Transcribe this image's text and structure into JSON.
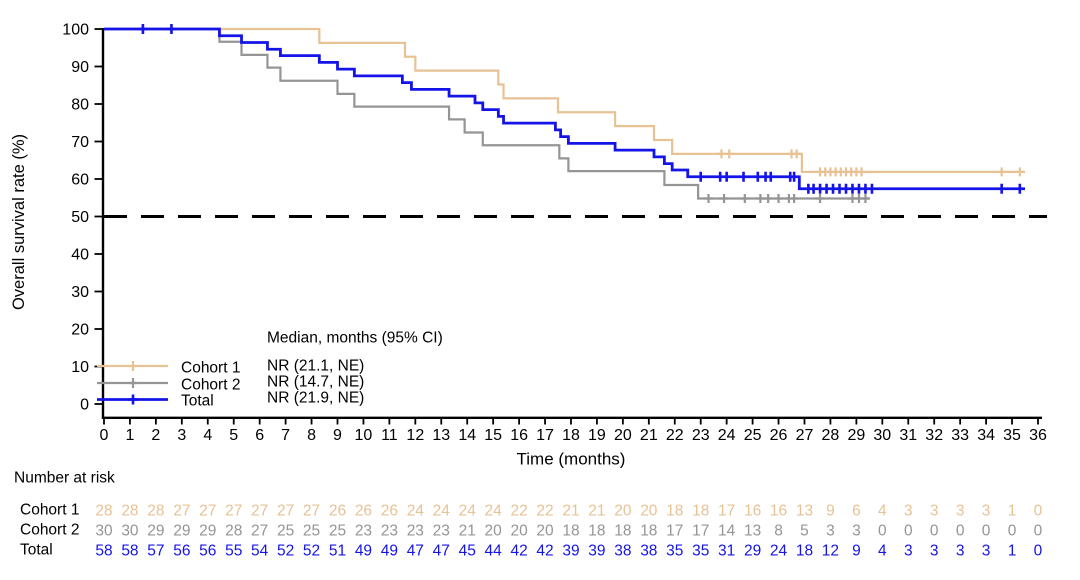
{
  "labels": {
    "y_title": "Overall survival rate (%)",
    "x_title": "Time (months)",
    "number_at_risk": "Number at risk",
    "median_header": "Median, months (95% CI)"
  },
  "chart_data": {
    "type": "line",
    "subtype": "kaplan-meier-step",
    "title": "",
    "xlabel": "Time (months)",
    "ylabel": "Overall survival rate (%)",
    "xlim": [
      0,
      36
    ],
    "ylim": [
      0,
      100
    ],
    "grid": false,
    "legend_position": "lower-left-inside",
    "x_axis": {
      "ticks": [
        0,
        1,
        2,
        3,
        4,
        5,
        6,
        7,
        8,
        9,
        10,
        11,
        12,
        13,
        14,
        15,
        16,
        17,
        18,
        19,
        20,
        21,
        22,
        23,
        24,
        25,
        26,
        27,
        28,
        29,
        30,
        31,
        32,
        33,
        34,
        35,
        36
      ]
    },
    "y_axis": {
      "ticks": [
        100,
        90,
        80,
        70,
        60,
        50,
        40,
        30,
        20,
        10,
        0
      ]
    },
    "reference_line": {
      "y": 50,
      "style": "dashed",
      "color": "#000000"
    },
    "axis_color": "#000000",
    "series": [
      {
        "name": "Cohort 1",
        "median": "NR (21.1, NE)",
        "color": "#E7C294",
        "line_width": 2.2,
        "start": [
          0,
          100
        ],
        "end_time": 35.5,
        "steps": [
          [
            8.3,
            96.3
          ],
          [
            11.6,
            92.6
          ],
          [
            12.0,
            88.9
          ],
          [
            15.2,
            85.2
          ],
          [
            15.4,
            81.5
          ],
          [
            17.5,
            77.8
          ],
          [
            19.7,
            74.1
          ],
          [
            21.2,
            70.4
          ],
          [
            21.9,
            66.7
          ],
          [
            26.9,
            61.9
          ]
        ],
        "censors": [
          [
            2.6,
            100
          ],
          [
            23.8,
            66.7
          ],
          [
            24.1,
            66.7
          ],
          [
            26.5,
            66.7
          ],
          [
            26.7,
            66.7
          ],
          [
            27.6,
            61.9
          ],
          [
            27.8,
            61.9
          ],
          [
            28.0,
            61.9
          ],
          [
            28.2,
            61.9
          ],
          [
            28.4,
            61.9
          ],
          [
            28.6,
            61.9
          ],
          [
            28.8,
            61.9
          ],
          [
            29.0,
            61.9
          ],
          [
            29.2,
            61.9
          ],
          [
            34.6,
            61.9
          ],
          [
            35.3,
            61.9
          ]
        ],
        "number_at_risk": [
          28,
          28,
          28,
          27,
          27,
          27,
          27,
          27,
          27,
          26,
          26,
          26,
          24,
          24,
          24,
          24,
          22,
          22,
          21,
          21,
          20,
          20,
          18,
          18,
          17,
          16,
          16,
          13,
          9,
          6,
          4,
          3,
          3,
          3,
          3,
          1,
          0
        ]
      },
      {
        "name": "Cohort 2",
        "median": "NR (14.7, NE)",
        "color": "#959595",
        "line_width": 2.2,
        "start": [
          0,
          100
        ],
        "end_time": 29.5,
        "steps": [
          [
            4.45,
            96.6
          ],
          [
            5.3,
            93.1
          ],
          [
            6.3,
            89.7
          ],
          [
            6.8,
            86.2
          ],
          [
            9.0,
            82.7
          ],
          [
            9.65,
            79.3
          ],
          [
            13.3,
            75.9
          ],
          [
            13.9,
            72.4
          ],
          [
            14.6,
            69.0
          ],
          [
            17.55,
            65.5
          ],
          [
            17.9,
            62.1
          ],
          [
            21.6,
            58.4
          ],
          [
            22.9,
            54.8
          ]
        ],
        "censors": [
          [
            1.5,
            100
          ],
          [
            23.3,
            54.8
          ],
          [
            23.9,
            54.8
          ],
          [
            24.7,
            54.8
          ],
          [
            25.3,
            54.8
          ],
          [
            25.6,
            54.8
          ],
          [
            26.0,
            54.8
          ],
          [
            26.4,
            54.8
          ],
          [
            26.6,
            54.8
          ],
          [
            27.6,
            54.8
          ],
          [
            28.85,
            54.8
          ],
          [
            29.1,
            54.8
          ],
          [
            29.35,
            54.8
          ]
        ],
        "number_at_risk": [
          30,
          30,
          29,
          29,
          29,
          28,
          27,
          25,
          25,
          25,
          23,
          23,
          23,
          23,
          21,
          20,
          20,
          20,
          18,
          18,
          18,
          18,
          17,
          17,
          14,
          13,
          8,
          5,
          3,
          3,
          0,
          0,
          0,
          0,
          0,
          0,
          0
        ]
      },
      {
        "name": "Total",
        "median": "NR (21.9, NE)",
        "color": "#1414E8",
        "line_width": 2.8,
        "start": [
          0,
          100
        ],
        "end_time": 35.5,
        "steps": [
          [
            4.45,
            98.2
          ],
          [
            5.3,
            96.4
          ],
          [
            6.3,
            94.6
          ],
          [
            6.8,
            92.9
          ],
          [
            8.3,
            91.1
          ],
          [
            9.0,
            89.3
          ],
          [
            9.65,
            87.5
          ],
          [
            11.5,
            85.7
          ],
          [
            11.85,
            83.9
          ],
          [
            13.3,
            82.1
          ],
          [
            14.3,
            80.3
          ],
          [
            14.6,
            78.5
          ],
          [
            15.2,
            76.7
          ],
          [
            15.4,
            74.9
          ],
          [
            17.4,
            73.1
          ],
          [
            17.6,
            71.3
          ],
          [
            17.9,
            69.5
          ],
          [
            19.7,
            67.7
          ],
          [
            21.2,
            65.9
          ],
          [
            21.6,
            64.1
          ],
          [
            21.9,
            62.4
          ],
          [
            22.5,
            60.6
          ],
          [
            26.8,
            57.4
          ]
        ],
        "censors": [
          [
            1.5,
            100
          ],
          [
            2.6,
            100
          ],
          [
            23.0,
            60.6
          ],
          [
            23.75,
            60.6
          ],
          [
            24.0,
            60.6
          ],
          [
            24.65,
            60.6
          ],
          [
            25.2,
            60.6
          ],
          [
            25.5,
            60.6
          ],
          [
            25.7,
            60.6
          ],
          [
            26.45,
            60.6
          ],
          [
            26.6,
            60.6
          ],
          [
            27.15,
            57.4
          ],
          [
            27.35,
            57.4
          ],
          [
            27.6,
            57.4
          ],
          [
            27.85,
            57.4
          ],
          [
            28.1,
            57.4
          ],
          [
            28.35,
            57.4
          ],
          [
            28.6,
            57.4
          ],
          [
            28.85,
            57.4
          ],
          [
            29.1,
            57.4
          ],
          [
            29.35,
            57.4
          ],
          [
            29.6,
            57.4
          ],
          [
            34.6,
            57.4
          ],
          [
            35.3,
            57.4
          ]
        ],
        "number_at_risk": [
          58,
          58,
          57,
          56,
          56,
          55,
          54,
          52,
          52,
          51,
          49,
          49,
          47,
          47,
          45,
          44,
          42,
          42,
          39,
          39,
          38,
          38,
          35,
          35,
          31,
          29,
          24,
          18,
          12,
          9,
          4,
          3,
          3,
          3,
          3,
          1,
          0
        ]
      }
    ]
  }
}
